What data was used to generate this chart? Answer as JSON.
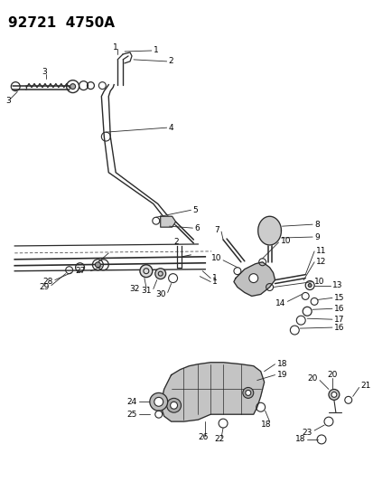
{
  "title": "92721  4750A",
  "bg_color": "#ffffff",
  "line_color": "#2a2a2a",
  "label_color": "#000000",
  "title_fontsize": 11,
  "label_fontsize": 6.5,
  "fig_width": 4.14,
  "fig_height": 5.33,
  "dpi": 100
}
